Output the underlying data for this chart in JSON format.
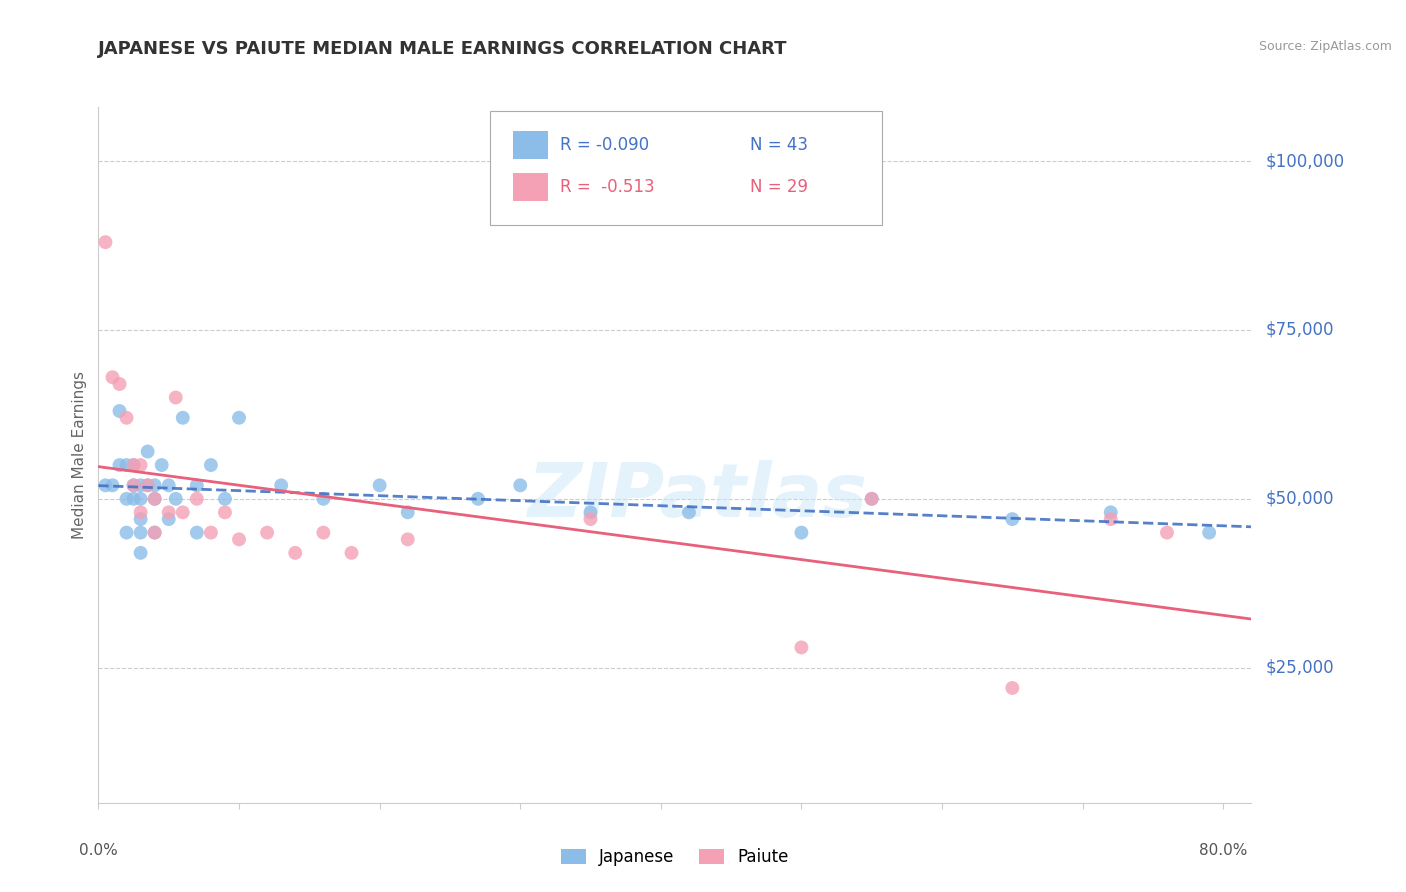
{
  "title": "JAPANESE VS PAIUTE MEDIAN MALE EARNINGS CORRELATION CHART",
  "source": "Source: ZipAtlas.com",
  "ylabel": "Median Male Earnings",
  "watermark": "ZIPatlas",
  "japanese_color": "#8bbde8",
  "paiute_color": "#f4a0b5",
  "japanese_line_color": "#4472c4",
  "paiute_line_color": "#e8607a",
  "axis_label_color": "#4472c4",
  "ytick_labels": [
    "$25,000",
    "$50,000",
    "$75,000",
    "$100,000"
  ],
  "ytick_values": [
    25000,
    50000,
    75000,
    100000
  ],
  "xlim": [
    0.0,
    0.82
  ],
  "ylim": [
    5000,
    108000
  ],
  "japanese_x": [
    0.005,
    0.01,
    0.015,
    0.015,
    0.02,
    0.02,
    0.02,
    0.025,
    0.025,
    0.025,
    0.03,
    0.03,
    0.03,
    0.03,
    0.03,
    0.035,
    0.035,
    0.04,
    0.04,
    0.04,
    0.045,
    0.05,
    0.05,
    0.055,
    0.06,
    0.07,
    0.07,
    0.08,
    0.09,
    0.1,
    0.13,
    0.16,
    0.2,
    0.22,
    0.27,
    0.3,
    0.35,
    0.42,
    0.5,
    0.55,
    0.65,
    0.72,
    0.79
  ],
  "japanese_y": [
    52000,
    52000,
    63000,
    55000,
    55000,
    50000,
    45000,
    55000,
    52000,
    50000,
    52000,
    50000,
    47000,
    45000,
    42000,
    57000,
    52000,
    52000,
    50000,
    45000,
    55000,
    52000,
    47000,
    50000,
    62000,
    52000,
    45000,
    55000,
    50000,
    62000,
    52000,
    50000,
    52000,
    48000,
    50000,
    52000,
    48000,
    48000,
    45000,
    50000,
    47000,
    48000,
    45000
  ],
  "paiute_x": [
    0.005,
    0.01,
    0.015,
    0.02,
    0.025,
    0.025,
    0.03,
    0.03,
    0.035,
    0.04,
    0.04,
    0.05,
    0.055,
    0.06,
    0.07,
    0.08,
    0.09,
    0.1,
    0.12,
    0.14,
    0.16,
    0.18,
    0.22,
    0.35,
    0.5,
    0.55,
    0.65,
    0.72,
    0.76
  ],
  "paiute_y": [
    88000,
    68000,
    67000,
    62000,
    55000,
    52000,
    55000,
    48000,
    52000,
    50000,
    45000,
    48000,
    65000,
    48000,
    50000,
    45000,
    48000,
    44000,
    45000,
    42000,
    45000,
    42000,
    44000,
    47000,
    28000,
    50000,
    22000,
    47000,
    45000
  ],
  "note_japanese": "R = -0.090",
  "note_japanese_n": "N = 43",
  "note_paiute": "R =  -0.513",
  "note_paiute_n": "N = 29"
}
